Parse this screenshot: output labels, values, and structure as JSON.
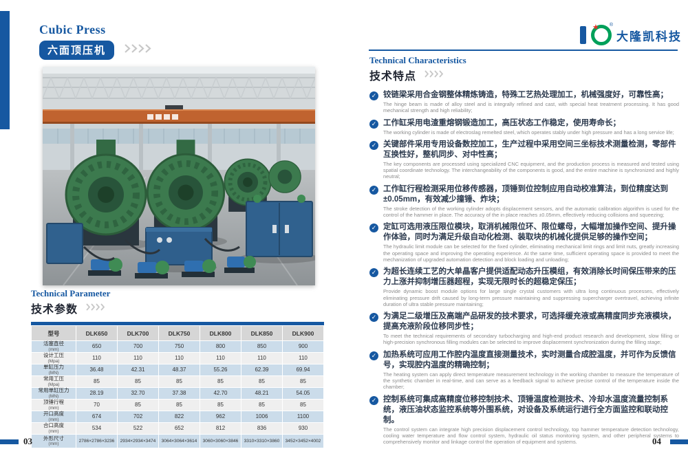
{
  "header": {
    "title_en": "Cubic Press",
    "title_zh": "六面顶压机",
    "brand_name": "大隆凯科技"
  },
  "parameters": {
    "title_en": "Technical Parameter",
    "title_zh": "技术参数",
    "table": {
      "col_header_label": "型号",
      "models": [
        "DLK650",
        "DLK700",
        "DLK750",
        "DLK800",
        "DLK850",
        "DLK900"
      ],
      "rows": [
        {
          "label": "活塞直径",
          "unit": "(mm)",
          "values": [
            "650",
            "700",
            "750",
            "800",
            "850",
            "900"
          ]
        },
        {
          "label": "设计工压",
          "unit": "(Mpa)",
          "values": [
            "110",
            "110",
            "110",
            "110",
            "110",
            "110"
          ]
        },
        {
          "label": "单缸压力",
          "unit": "(MN)",
          "values": [
            "36.48",
            "42.31",
            "48.37",
            "55.26",
            "62.39",
            "69.94"
          ]
        },
        {
          "label": "常用工压",
          "unit": "(Mpa)",
          "values": [
            "85",
            "85",
            "85",
            "85",
            "85",
            "85"
          ]
        },
        {
          "label": "常用单缸压力",
          "unit": "(MN)",
          "values": [
            "28.19",
            "32.70",
            "37.38",
            "42.70",
            "48.21",
            "54.05"
          ]
        },
        {
          "label": "顶锤行程",
          "unit": "(mm)",
          "values": [
            "70",
            "85",
            "85",
            "85",
            "85",
            "85"
          ]
        },
        {
          "label": "开口高度",
          "unit": "(mm)",
          "values": [
            "674",
            "702",
            "822",
            "962",
            "1006",
            "1100"
          ]
        },
        {
          "label": "合口高度",
          "unit": "(mm)",
          "values": [
            "534",
            "522",
            "652",
            "812",
            "836",
            "930"
          ]
        },
        {
          "label": "外形尺寸",
          "unit": "(mm)",
          "values": [
            "2786×2786×3236",
            "2934×2934×3474",
            "3064×3064×3614",
            "3060×3060×3846",
            "3310×3310×3860",
            "3452×3452×4002"
          ]
        }
      ]
    }
  },
  "characteristics": {
    "title_en": "Technical Characteristics",
    "title_zh": "技术特点",
    "items": [
      {
        "zh": "铰链梁采用合金钢整体精炼铸造，特殊工艺热处理加工，机械强度好，可靠性高；",
        "en": "The hinge beam is made of alloy steel and is integrally refined and cast, with special heat treatment processing. It has good mechanical strength and high reliability;"
      },
      {
        "zh": "工作缸采用电渣重熔钢锻造加工，高压状态工作稳定，使用寿命长；",
        "en": "The working cylinder is made of electroslag remelted steel, which operates stably under high pressure and has a long service life;"
      },
      {
        "zh": "关键部件采用专用设备数控加工，生产过程中采用空间三坐标技术测量检测，零部件互换性好，整机同步、对中性高；",
        "en": "The key components are processed using specialized CNC equipment, and the production process is measured and tested using spatial coordinate technology. The interchangeability of the components is good, and the entire machine is synchronized and highly neutral;"
      },
      {
        "zh": "工作缸行程检测采用位移传感器，顶锤到位控制应用自动校准算法，到位精度达到±0.05mm，有效减少撞锤、炸块；",
        "en": "The stroke detection of the working cylinder adopts displacement sensors, and the automatic calibration algorithm is used for the control of the hammer in place. The accuracy of the in place reaches ±0.05mm, effectively reducing collisions and squeezing;"
      },
      {
        "zh": "定缸可选用液压限位模块，取消机械限位环、限位螺母，大幅增加操作空间、提升操作体验，同时为满足升级自动化检测、装取块的机械化提供足够的操作空间；",
        "en": "The hydraulic limit module can be selected for the fixed cylinder, eliminating mechanical limit rings and limit nuts, greatly increasing the operating space and improving the operating experience. At the same time, sufficient operating space is provided to meet the mechanization of upgraded automation detection and block loading and unloading;"
      },
      {
        "zh": "为超长连续工艺的大单晶客户提供适配动态升压模组，有效消除长时间保压带来的压力上涨并抑制增压器超程，实现无限时长的超稳定保压；",
        "en": "Provide dynamic boost module options for large single crystal customers with ultra long continuous processes, effectively eliminating pressure drift caused by long-term pressure maintaining and suppressing supercharger overtravel, achieving infinite duration of ultra stable pressure maintaining;"
      },
      {
        "zh": "为满足二级增压及高端产品研发的技术要求，可选择缓充液或高精度同步充液模块，提高充液阶段位移同步性；",
        "en": "To meet the technical requirements of secondary turbocharging and high-end product research and development, slow filling or high-precision synchronous filling modules can be selected to improve displacement synchronization during the filling stage;"
      },
      {
        "zh": "加热系统可应用工作腔内温度直接测量技术，实时测量合成腔温度，并可作为反馈信号，实现腔内温度的精确控制；",
        "en": "The heating system can apply direct temperature measurement technology in the working chamber to measure the temperature of the synthetic chamber in real-time, and can serve as a feedback signal to achieve precise control of the temperature inside the chamber;"
      },
      {
        "zh": "控制系统可集成高精度位移控制技术、顶锤温度检测技术、冷却水温度流量控制系统，液压油状态监控系统等外围系统，对设备及系统运行进行全方面监控和联动控制。",
        "en": "The control system can integrate high precision displacement control technology, top hammer temperature detection technology, cooling water temperature and flow control system, hydraulic oil status monitoring system, and other peripheral systems to comprehensively monitor and linkage control the operation of equipment and systems."
      }
    ]
  },
  "footer": {
    "left_number": "03",
    "right_number": "04"
  },
  "colors": {
    "brand_blue": "#1658a1",
    "logo_green": "#00a05a",
    "logo_red": "#e8332a",
    "table_row_blue": "#cbdcea",
    "table_row_gray": "#efefef",
    "table_header_gray": "#d6d6d6",
    "machine_green": "#3c7a4e",
    "cabinet_blue": "#30618e",
    "crane_orange": "#c0632f"
  }
}
